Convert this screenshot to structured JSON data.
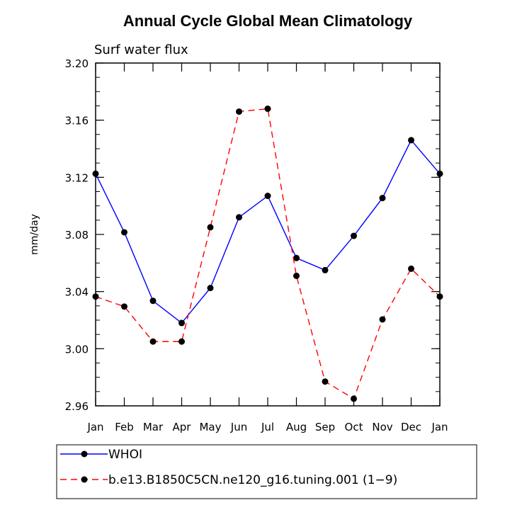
{
  "chart_data": {
    "type": "line",
    "title": "Annual Cycle Global Mean Climatology",
    "subtitle": "Surf water flux",
    "xlabel": "",
    "ylabel": "mm/day",
    "categories": [
      "Jan",
      "Feb",
      "Mar",
      "Apr",
      "May",
      "Jun",
      "Jul",
      "Aug",
      "Sep",
      "Oct",
      "Nov",
      "Dec",
      "Jan"
    ],
    "ylim": [
      2.96,
      3.2
    ],
    "yticks": [
      "2.96",
      "3.00",
      "3.04",
      "3.08",
      "3.12",
      "3.16",
      "3.20"
    ],
    "series": [
      {
        "name": "WHOI",
        "color": "#0000ff",
        "dash": "solid",
        "values": [
          3.1225,
          3.0815,
          3.0335,
          3.018,
          3.0425,
          3.092,
          3.107,
          3.0635,
          3.055,
          3.079,
          3.1055,
          3.146,
          3.1225
        ]
      },
      {
        "name": "b.e13.B1850C5CN.ne120_g16.tuning.001 (1−9)",
        "color": "#ff0000",
        "dash": "dashed",
        "values": [
          3.0365,
          3.0295,
          3.005,
          3.005,
          3.085,
          3.166,
          3.168,
          3.051,
          2.977,
          2.965,
          3.0205,
          3.056,
          3.0365
        ]
      }
    ],
    "legend": "bottom"
  }
}
